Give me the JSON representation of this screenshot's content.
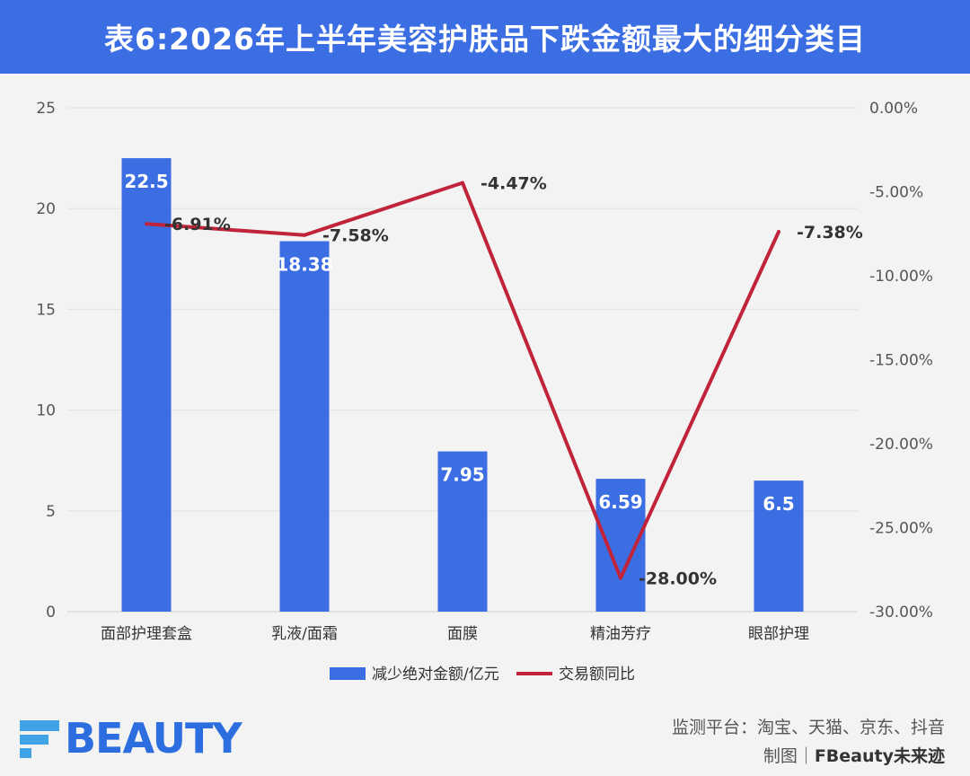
{
  "header": {
    "title": "表6:2026年上半年美容护肤品下跌金额最大的细分类目"
  },
  "chart_data": {
    "type": "bar",
    "categories": [
      "面部护理套盒",
      "乳液/面霜",
      "面膜",
      "精油芳疗",
      "眼部护理"
    ],
    "series": [
      {
        "name": "减少绝对金额/亿元",
        "type": "bar",
        "axis": "left",
        "values": [
          22.5,
          18.38,
          7.95,
          6.59,
          6.5
        ],
        "labels": [
          "22.5",
          "18.38",
          "7.95",
          "6.59",
          "6.5"
        ],
        "color": "#3b6de3"
      },
      {
        "name": "交易额同比",
        "type": "line",
        "axis": "right",
        "values": [
          -6.91,
          -7.58,
          -4.47,
          -28.0,
          -7.38
        ],
        "labels": [
          "-6.91%",
          "-7.58%",
          "-4.47%",
          "-28.00%",
          "-7.38%"
        ],
        "color": "#c0233a"
      }
    ],
    "y_left": {
      "min": 0,
      "max": 25,
      "ticks": [
        0,
        5,
        10,
        15,
        20,
        25
      ],
      "tick_labels": [
        "0",
        "5",
        "10",
        "15",
        "20",
        "25"
      ]
    },
    "y_right": {
      "min": -30,
      "max": 0,
      "ticks": [
        0,
        -5,
        -10,
        -15,
        -20,
        -25,
        -30
      ],
      "tick_labels": [
        "0.00%",
        "-5.00%",
        "-10.00%",
        "-15.00%",
        "-20.00%",
        "-25.00%",
        "-30.00%"
      ]
    },
    "grid": true,
    "legend_position": "bottom"
  },
  "logo": {
    "text": "BEAUTY",
    "icon": "fbeauty-logo-mark"
  },
  "footer": {
    "source_line": "监测平台：淘宝、天猫、京东、抖音",
    "credit_prefix": "制图｜",
    "credit_brand": "FBeauty未来迹"
  }
}
